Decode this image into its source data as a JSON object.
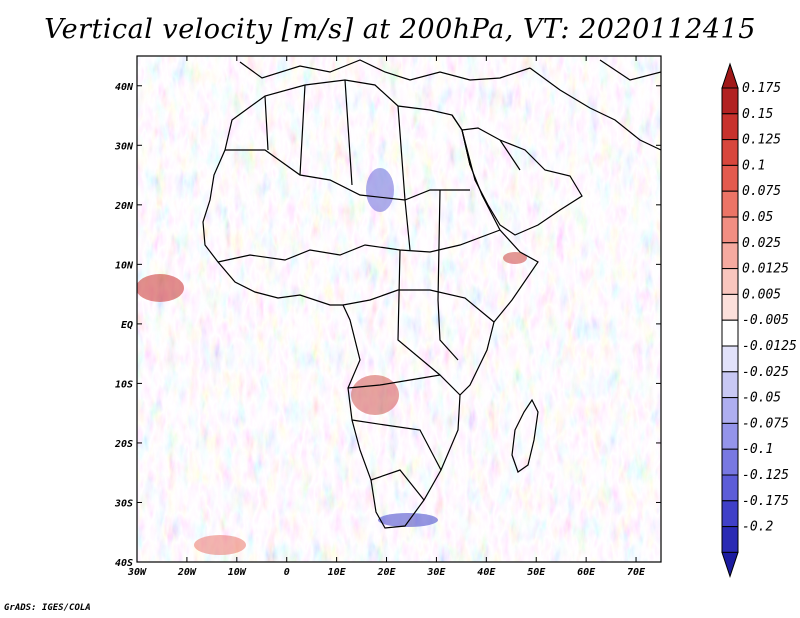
{
  "title": "Vertical velocity [m/s] at 200hPa, VT: 2020112415",
  "footer": "GrADS: IGES/COLA",
  "map": {
    "region": "Africa",
    "lon_range": [
      -30,
      75
    ],
    "lat_range": [
      -40,
      45
    ],
    "lat_ticks": [
      {
        "lat": 40,
        "label": "40N"
      },
      {
        "lat": 30,
        "label": "30N"
      },
      {
        "lat": 20,
        "label": "20N"
      },
      {
        "lat": 10,
        "label": "10N"
      },
      {
        "lat": 0,
        "label": "EQ"
      },
      {
        "lat": -10,
        "label": "10S"
      },
      {
        "lat": -20,
        "label": "20S"
      },
      {
        "lat": -30,
        "label": "30S"
      },
      {
        "lat": -40,
        "label": "40S"
      }
    ],
    "lon_ticks": [
      {
        "lon": -30,
        "label": "30W"
      },
      {
        "lon": -20,
        "label": "20W"
      },
      {
        "lon": -10,
        "label": "10W"
      },
      {
        "lon": 0,
        "label": "0"
      },
      {
        "lon": 10,
        "label": "10E"
      },
      {
        "lon": 20,
        "label": "20E"
      },
      {
        "lon": 30,
        "label": "30E"
      },
      {
        "lon": 40,
        "label": "40E"
      },
      {
        "lon": 50,
        "label": "50E"
      },
      {
        "lon": 60,
        "label": "60E"
      },
      {
        "lon": 70,
        "label": "70E"
      }
    ]
  },
  "colorbar": {
    "levels": [
      {
        "label": "0.175",
        "color": "#b22222"
      },
      {
        "label": "0.15",
        "color": "#c8322d"
      },
      {
        "label": "0.125",
        "color": "#d8463c"
      },
      {
        "label": "0.1",
        "color": "#e45a4e"
      },
      {
        "label": "0.075",
        "color": "#ec7466"
      },
      {
        "label": "0.05",
        "color": "#f28e82"
      },
      {
        "label": "0.025",
        "color": "#f6aaa0"
      },
      {
        "label": "0.0125",
        "color": "#f9c6be"
      },
      {
        "label": "0.005",
        "color": "#fce0db"
      },
      {
        "label": "-0.005",
        "color": "#ffffff"
      },
      {
        "label": "-0.0125",
        "color": "#e2e2fa"
      },
      {
        "label": "-0.025",
        "color": "#c8c8f4"
      },
      {
        "label": "-0.05",
        "color": "#aeaef0"
      },
      {
        "label": "-0.075",
        "color": "#9494ea"
      },
      {
        "label": "-0.1",
        "color": "#7878e2"
      },
      {
        "label": "-0.125",
        "color": "#5c5cd8"
      },
      {
        "label": "-0.175",
        "color": "#4040c8"
      },
      {
        "label": "-0.2",
        "color": "#2a2ab4"
      }
    ],
    "top_color": "#a01818",
    "bottom_color": "#1c1ca0"
  }
}
